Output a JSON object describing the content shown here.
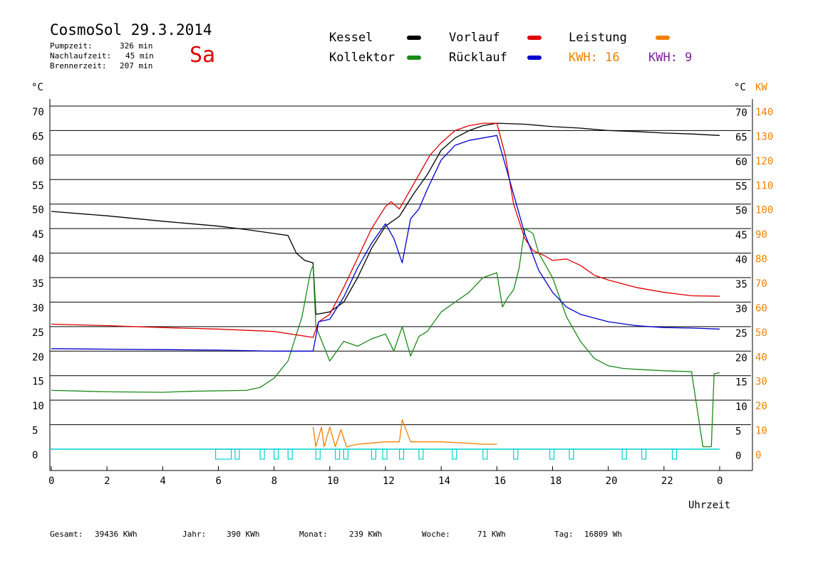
{
  "header": {
    "title": "CosmoSol 29.3.2014",
    "day": "Sa",
    "info": [
      {
        "label": "Pumpzeit:",
        "value": "326 min"
      },
      {
        "label": "Nachlaufzeit:",
        "value": "45 min"
      },
      {
        "label": "Brennerzeit:",
        "value": "207 min"
      }
    ]
  },
  "legend": {
    "kessel": "Kessel",
    "kollektor": "Kollektor",
    "vorlauf": "Vorlauf",
    "ruecklauf": "Rücklauf",
    "leistung": "Leistung",
    "kwh1": "KWH: 16",
    "kwh2": "KWH: 9",
    "colors": {
      "kessel": "#000000",
      "kollektor": "#1a8a1a",
      "vorlauf": "#e00000",
      "ruecklauf": "#0000d0",
      "leistung": "#f08000",
      "kwh2": "#8020a0",
      "pump": "#00d0d0"
    }
  },
  "axes": {
    "left_unit": "°C",
    "right_unit": "°C",
    "right_unit2": "KW",
    "xlabel": "Uhrzeit"
  },
  "stats": {
    "gesamt_label": "Gesamt:",
    "gesamt": "39436 KWh",
    "jahr_label": "Jahr:",
    "jahr": "390 KWh",
    "monat_label": "Monat:",
    "monat": "239 KWh",
    "woche_label": "Woche:",
    "woche": "71 KWh",
    "tag_label": "Tag:",
    "tag": "16809 Wh"
  },
  "chart_data": {
    "type": "line",
    "xlim": [
      0,
      24
    ],
    "ylim": [
      0,
      70
    ],
    "y2lim": [
      0,
      140
    ],
    "x_ticks": [
      "0",
      "2",
      "4",
      "6",
      "8",
      "10",
      "12",
      "14",
      "16",
      "18",
      "20",
      "22",
      "0"
    ],
    "y_ticks": [
      "0",
      "5",
      "10",
      "15",
      "20",
      "25",
      "30",
      "35",
      "40",
      "45",
      "50",
      "55",
      "60",
      "65",
      "70"
    ],
    "y2_ticks": [
      "0",
      "10",
      "20",
      "30",
      "40",
      "50",
      "60",
      "70",
      "80",
      "90",
      "100",
      "110",
      "120",
      "130",
      "140"
    ],
    "grid": true,
    "series": [
      {
        "name": "Kessel",
        "color": "#000000",
        "points": [
          [
            0,
            48.5
          ],
          [
            2,
            47.6
          ],
          [
            4,
            46.5
          ],
          [
            6,
            45.5
          ],
          [
            7,
            44.8
          ],
          [
            8.5,
            43.6
          ],
          [
            8.8,
            40
          ],
          [
            9.1,
            38.5
          ],
          [
            9.4,
            38
          ],
          [
            9.5,
            27.5
          ],
          [
            10,
            28
          ],
          [
            10.5,
            30
          ],
          [
            11,
            35
          ],
          [
            11.5,
            41
          ],
          [
            12,
            45.5
          ],
          [
            12.5,
            47.5
          ],
          [
            13,
            52
          ],
          [
            13.5,
            56
          ],
          [
            14,
            61
          ],
          [
            14.5,
            63.5
          ],
          [
            15,
            65
          ],
          [
            15.5,
            66
          ],
          [
            16,
            66.5
          ],
          [
            17,
            66.3
          ],
          [
            18,
            65.8
          ],
          [
            19,
            65.5
          ],
          [
            20,
            65
          ],
          [
            21,
            64.8
          ],
          [
            22,
            64.5
          ],
          [
            23,
            64.3
          ],
          [
            24,
            64
          ]
        ]
      },
      {
        "name": "Kollektor",
        "color": "#1a8a1a",
        "points": [
          [
            0,
            12
          ],
          [
            2,
            11.7
          ],
          [
            4,
            11.6
          ],
          [
            5,
            11.8
          ],
          [
            7,
            12
          ],
          [
            7.5,
            12.6
          ],
          [
            8,
            14.5
          ],
          [
            8.5,
            18
          ],
          [
            9,
            27
          ],
          [
            9.3,
            36
          ],
          [
            9.4,
            37.5
          ],
          [
            9.5,
            25
          ],
          [
            10,
            18
          ],
          [
            10.5,
            22
          ],
          [
            11,
            21
          ],
          [
            11.5,
            22.5
          ],
          [
            12,
            23.5
          ],
          [
            12.3,
            20
          ],
          [
            12.6,
            25
          ],
          [
            12.9,
            19
          ],
          [
            13.2,
            23
          ],
          [
            13.5,
            24
          ],
          [
            14,
            28
          ],
          [
            14.5,
            30
          ],
          [
            15,
            32
          ],
          [
            15.5,
            35
          ],
          [
            16,
            36
          ],
          [
            16.2,
            29
          ],
          [
            16.4,
            31
          ],
          [
            16.6,
            32.5
          ],
          [
            16.8,
            37
          ],
          [
            17,
            45
          ],
          [
            17.3,
            44
          ],
          [
            17.5,
            40
          ],
          [
            18,
            35
          ],
          [
            18.5,
            27
          ],
          [
            19,
            22
          ],
          [
            19.5,
            18.5
          ],
          [
            20,
            17
          ],
          [
            20.5,
            16.5
          ],
          [
            21,
            16.3
          ],
          [
            22,
            16
          ],
          [
            23,
            15.8
          ],
          [
            23,
            15.4
          ],
          [
            23.4,
            0.5
          ],
          [
            23.7,
            0.5
          ],
          [
            23.8,
            15.4
          ],
          [
            24,
            15.6
          ]
        ]
      },
      {
        "name": "Vorlauf",
        "color": "#e00000",
        "points": [
          [
            0,
            25.5
          ],
          [
            2,
            25.2
          ],
          [
            4,
            24.8
          ],
          [
            6,
            24.5
          ],
          [
            8,
            24
          ],
          [
            9.4,
            22.8
          ],
          [
            9.6,
            26
          ],
          [
            10,
            27.5
          ],
          [
            10.5,
            33
          ],
          [
            11,
            39
          ],
          [
            11.5,
            45
          ],
          [
            12,
            49.5
          ],
          [
            12.2,
            50.5
          ],
          [
            12.5,
            49
          ],
          [
            13,
            54
          ],
          [
            13.3,
            57
          ],
          [
            13.6,
            60
          ],
          [
            14,
            62.5
          ],
          [
            14.5,
            65
          ],
          [
            15,
            66
          ],
          [
            15.5,
            66.5
          ],
          [
            16,
            66.5
          ],
          [
            16.3,
            60
          ],
          [
            16.6,
            50
          ],
          [
            17,
            43
          ],
          [
            17.3,
            40.5
          ],
          [
            17.7,
            39.5
          ],
          [
            18,
            38.5
          ],
          [
            18.5,
            38.8
          ],
          [
            19,
            37.5
          ],
          [
            19.5,
            35.5
          ],
          [
            20,
            34.5
          ],
          [
            21,
            33
          ],
          [
            22,
            32
          ],
          [
            23,
            31.3
          ],
          [
            24,
            31.2
          ]
        ]
      },
      {
        "name": "Rücklauf",
        "color": "#0000d0",
        "points": [
          [
            0,
            20.5
          ],
          [
            2,
            20.4
          ],
          [
            4,
            20.3
          ],
          [
            6,
            20.2
          ],
          [
            8,
            20
          ],
          [
            9.4,
            20
          ],
          [
            9.6,
            26
          ],
          [
            10,
            26.5
          ],
          [
            10.5,
            31
          ],
          [
            11,
            37
          ],
          [
            11.5,
            42
          ],
          [
            12,
            46
          ],
          [
            12.3,
            43
          ],
          [
            12.6,
            38
          ],
          [
            12.9,
            47
          ],
          [
            13.2,
            49
          ],
          [
            13.5,
            53
          ],
          [
            14,
            59
          ],
          [
            14.5,
            62
          ],
          [
            15,
            63
          ],
          [
            15.5,
            63.5
          ],
          [
            16,
            64
          ],
          [
            16.3,
            58
          ],
          [
            16.6,
            52
          ],
          [
            17,
            44
          ],
          [
            17.5,
            36.5
          ],
          [
            18,
            32
          ],
          [
            18.5,
            29
          ],
          [
            19,
            27.5
          ],
          [
            20,
            26
          ],
          [
            21,
            25.2
          ],
          [
            22,
            24.8
          ],
          [
            23,
            24.7
          ],
          [
            24,
            24.5
          ]
        ]
      },
      {
        "name": "Leistung",
        "color": "#f08000",
        "points": [
          [
            9.4,
            4.5
          ],
          [
            9.5,
            0.5
          ],
          [
            9.7,
            4.5
          ],
          [
            9.8,
            0.5
          ],
          [
            10,
            4.5
          ],
          [
            10.2,
            0.5
          ],
          [
            10.4,
            4
          ],
          [
            10.6,
            0.5
          ],
          [
            11,
            1
          ],
          [
            12,
            1.5
          ],
          [
            12.5,
            1.5
          ],
          [
            12.6,
            6
          ],
          [
            12.9,
            1.5
          ],
          [
            13.5,
            1.5
          ],
          [
            14,
            1.5
          ],
          [
            15,
            1.2
          ],
          [
            15.5,
            1
          ],
          [
            16,
            1
          ]
        ]
      }
    ]
  }
}
